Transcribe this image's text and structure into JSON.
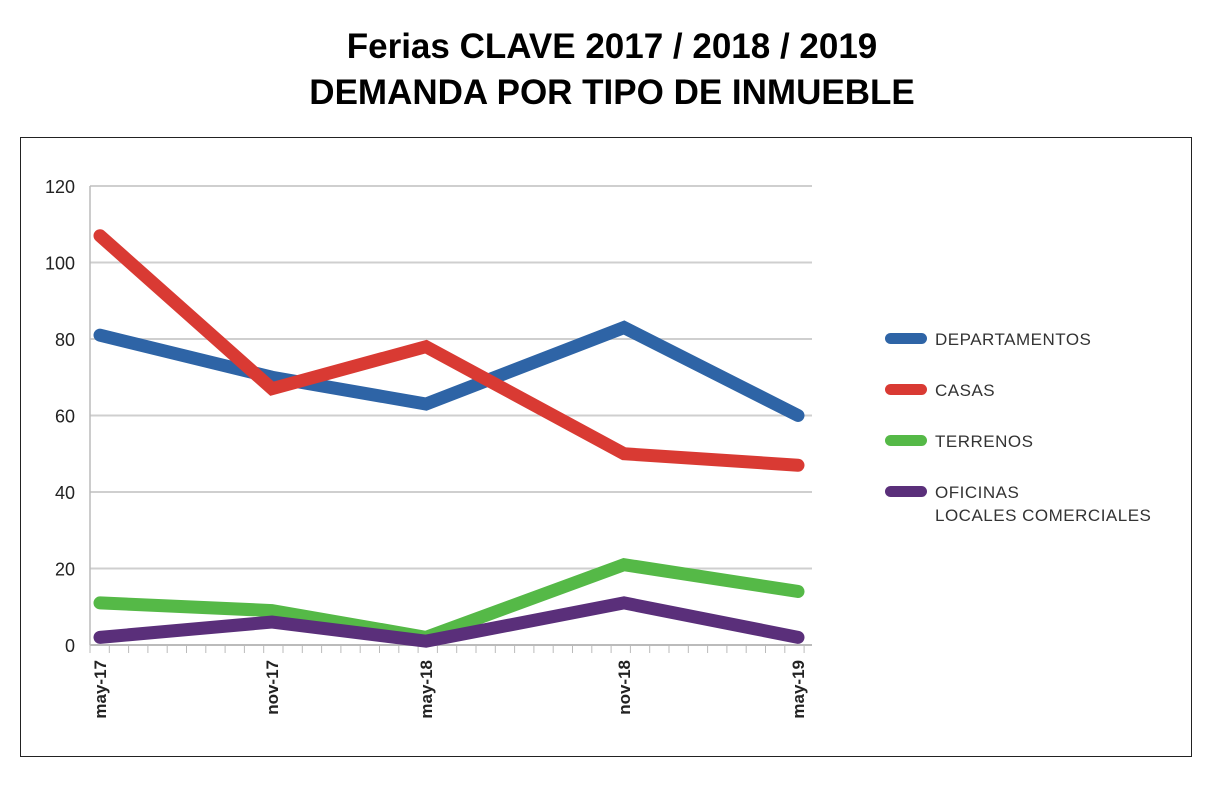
{
  "chart_data": {
    "type": "line",
    "title": "Ferias CLAVE 2017 / 2018 / 2019",
    "subtitle": "DEMANDA POR TIPO DE INMUEBLE",
    "xlabel": "",
    "ylabel": "",
    "categories": [
      "may-17",
      "nov-17",
      "may-18",
      "nov-18",
      "may-19"
    ],
    "ylim": [
      0,
      120
    ],
    "yticks": [
      "0",
      "20",
      "40",
      "60",
      "80",
      "100",
      "120"
    ],
    "grid": true,
    "legend_position": "right",
    "series": [
      {
        "name": "DEPARTAMENTOS",
        "color": "#2e64a6",
        "values": [
          81,
          70,
          63,
          83,
          60
        ]
      },
      {
        "name": "CASAS",
        "color": "#d93a33",
        "values": [
          107,
          67,
          78,
          50,
          47
        ]
      },
      {
        "name": "TERRENOS",
        "color": "#55b947",
        "values": [
          11,
          9,
          2,
          21,
          14
        ]
      },
      {
        "name": "OFICINAS LOCALES COMERCIALES",
        "label_lines": [
          "OFICINAS",
          "LOCALES COMERCIALES"
        ],
        "color": "#5a2f7a",
        "values": [
          2,
          6,
          1,
          11,
          2
        ]
      }
    ]
  }
}
